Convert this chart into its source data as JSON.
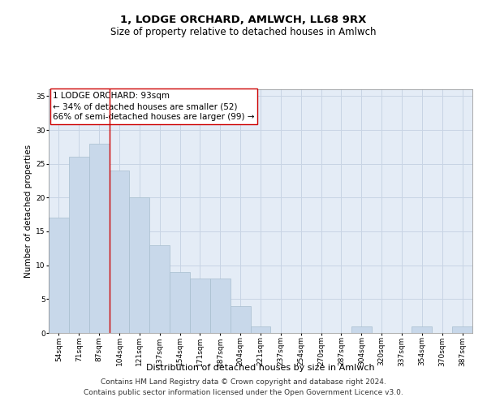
{
  "title": "1, LODGE ORCHARD, AMLWCH, LL68 9RX",
  "subtitle": "Size of property relative to detached houses in Amlwch",
  "xlabel": "Distribution of detached houses by size in Amlwch",
  "ylabel": "Number of detached properties",
  "categories": [
    "54sqm",
    "71sqm",
    "87sqm",
    "104sqm",
    "121sqm",
    "137sqm",
    "154sqm",
    "171sqm",
    "187sqm",
    "204sqm",
    "221sqm",
    "237sqm",
    "254sqm",
    "270sqm",
    "287sqm",
    "304sqm",
    "320sqm",
    "337sqm",
    "354sqm",
    "370sqm",
    "387sqm"
  ],
  "values": [
    17,
    26,
    28,
    24,
    20,
    13,
    9,
    8,
    8,
    4,
    1,
    0,
    0,
    0,
    0,
    1,
    0,
    0,
    1,
    0,
    1
  ],
  "bar_color": "#c8d8ea",
  "bar_edge_color": "#a8bece",
  "vline_x_index": 2.5,
  "vline_color": "#cc0000",
  "annotation_text": "1 LODGE ORCHARD: 93sqm\n← 34% of detached houses are smaller (52)\n66% of semi-detached houses are larger (99) →",
  "annotation_box_color": "#ffffff",
  "annotation_box_edge_color": "#cc0000",
  "ylim": [
    0,
    36
  ],
  "yticks": [
    0,
    5,
    10,
    15,
    20,
    25,
    30,
    35
  ],
  "grid_color": "#c8d4e4",
  "background_color": "#e4ecf6",
  "footer_line1": "Contains HM Land Registry data © Crown copyright and database right 2024.",
  "footer_line2": "Contains public sector information licensed under the Open Government Licence v3.0.",
  "title_fontsize": 9.5,
  "subtitle_fontsize": 8.5,
  "xlabel_fontsize": 8,
  "ylabel_fontsize": 7.5,
  "tick_fontsize": 6.5,
  "annotation_fontsize": 7.5,
  "footer_fontsize": 6.5
}
